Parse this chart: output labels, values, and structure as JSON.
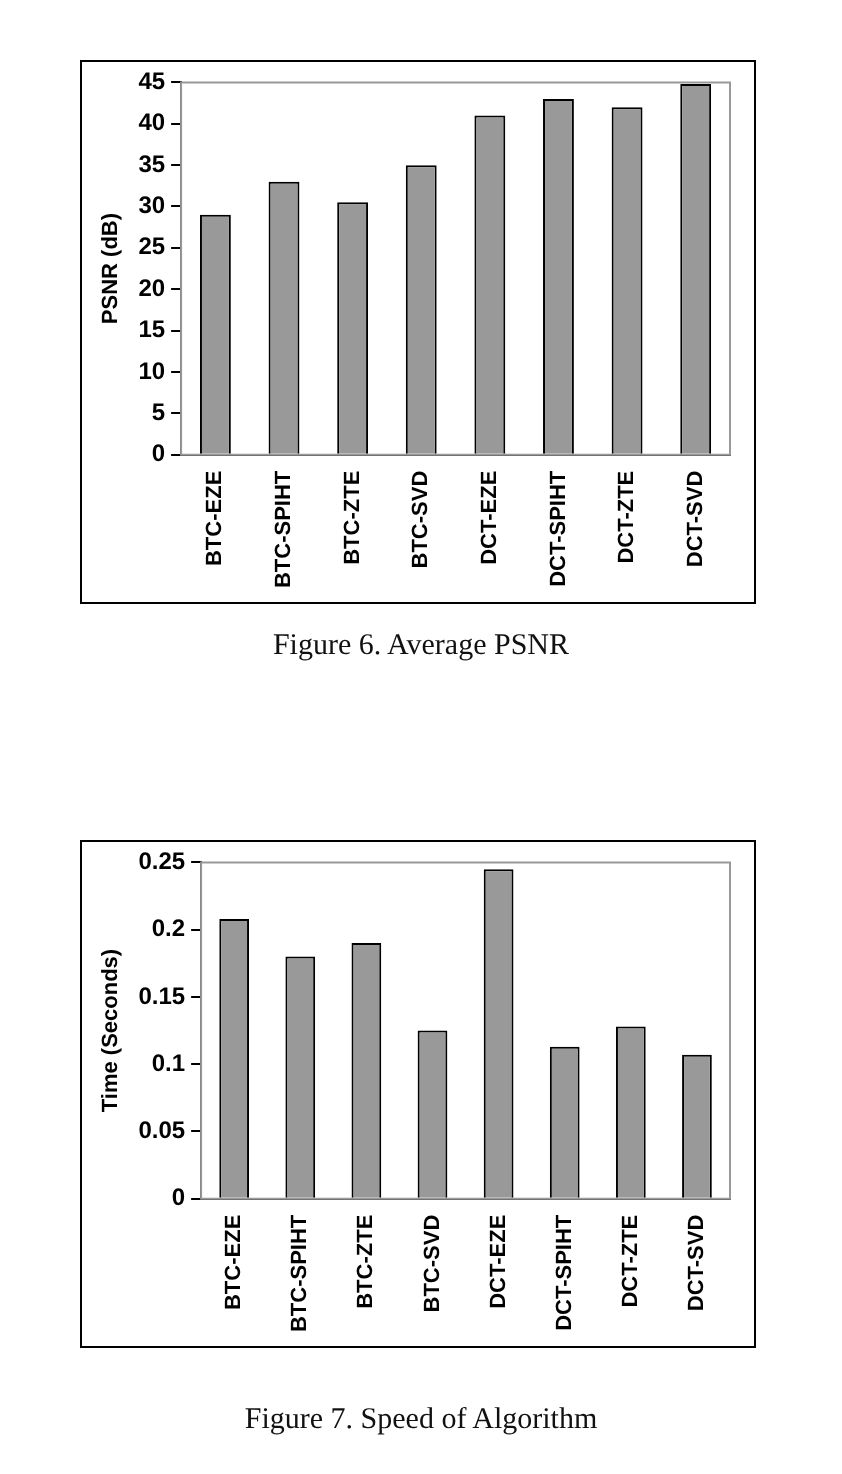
{
  "chart_data": [
    {
      "type": "bar",
      "title": "Figure 6. Average PSNR",
      "ylabel": "PSNR (dB)",
      "categories": [
        "BTC-EZE",
        "BTC-SPIHT",
        "BTC-ZTE",
        "BTC-SVD",
        "DCT-EZE",
        "DCT-SPIHT",
        "DCT-ZTE",
        "DCT-SVD"
      ],
      "values": [
        29,
        33,
        30.5,
        35,
        41,
        43,
        42,
        44.8
      ],
      "color": "#999999",
      "ylim": [
        0,
        45
      ],
      "yticks": [
        0,
        5,
        10,
        15,
        20,
        25,
        30,
        35,
        40,
        45
      ],
      "grid": false,
      "legend": false
    },
    {
      "type": "bar",
      "title": "Figure 7. Speed of Algorithm",
      "ylabel": "Time (Seconds)",
      "categories": [
        "BTC-EZE",
        "BTC-SPIHT",
        "BTC-ZTE",
        "BTC-SVD",
        "DCT-EZE",
        "DCT-SPIHT",
        "DCT-ZTE",
        "DCT-SVD"
      ],
      "values": [
        0.208,
        0.18,
        0.19,
        0.125,
        0.245,
        0.113,
        0.128,
        0.107
      ],
      "color": "#999999",
      "ylim": [
        0,
        0.25
      ],
      "yticks": [
        0,
        0.05,
        0.1,
        0.15,
        0.2,
        0.25
      ],
      "grid": false,
      "legend": false
    }
  ]
}
